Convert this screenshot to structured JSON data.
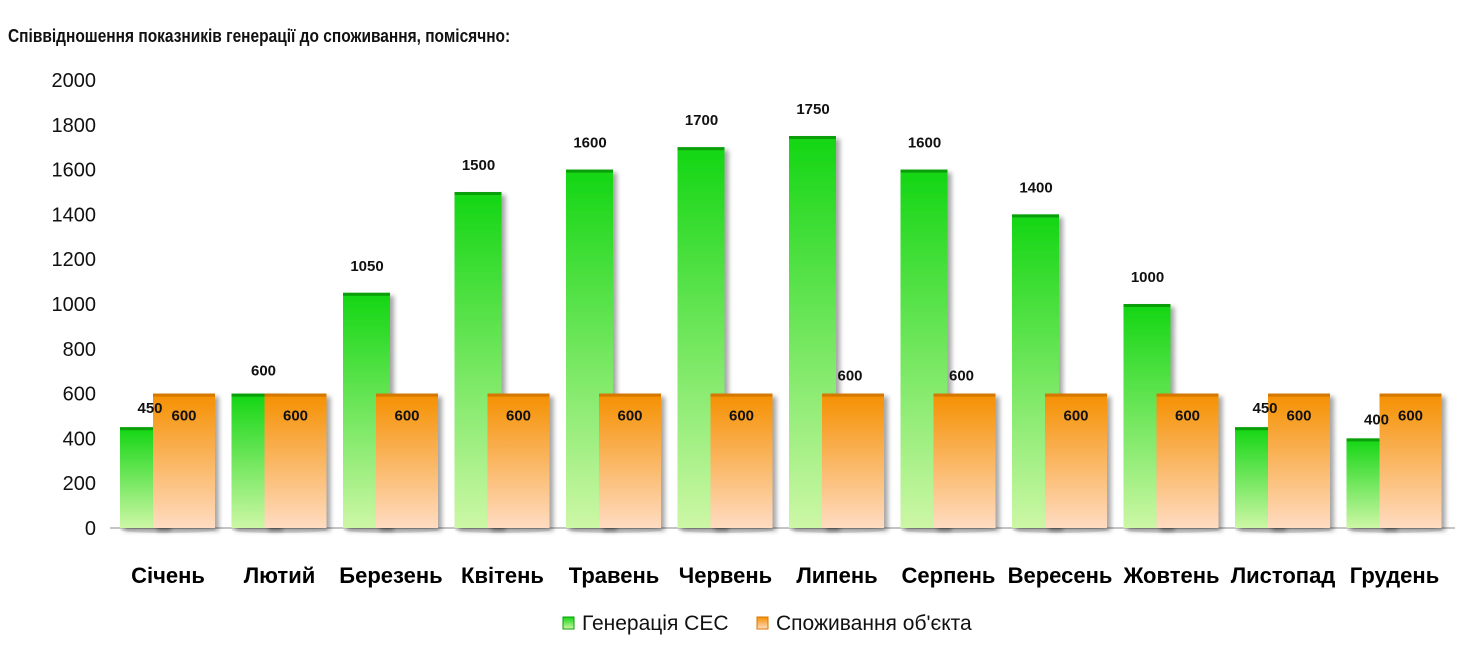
{
  "title": "Співвідношення показників генерації до споживання, помісячно:",
  "colors": {
    "generation_top": "#13d613",
    "generation_bottom": "#cdf7a6",
    "consumption_top": "#f59000",
    "consumption_bottom": "#ffdcc2",
    "axis": "#888888"
  },
  "chart_data": {
    "type": "bar",
    "title": "Співвідношення показників генерації до споживання, помісячно:",
    "categories": [
      "Січень",
      "Лютий",
      "Березень",
      "Квітень",
      "Травень",
      "Червень",
      "Липень",
      "Серпень",
      "Вересень",
      "Жовтень",
      "Листопад",
      "Грудень"
    ],
    "series": [
      {
        "name": "Генерація СЕС",
        "values": [
          450,
          600,
          1050,
          1500,
          1600,
          1700,
          1750,
          1600,
          1400,
          1000,
          450,
          400
        ]
      },
      {
        "name": "Споживання об'єкта",
        "values": [
          600,
          600,
          600,
          600,
          600,
          600,
          600,
          600,
          600,
          600,
          600,
          600
        ]
      }
    ],
    "ylim": [
      0,
      2000
    ],
    "yticks": [
      0,
      200,
      400,
      600,
      800,
      1000,
      1200,
      1400,
      1600,
      1800,
      2000
    ],
    "grid": false,
    "legend": "bottom"
  }
}
